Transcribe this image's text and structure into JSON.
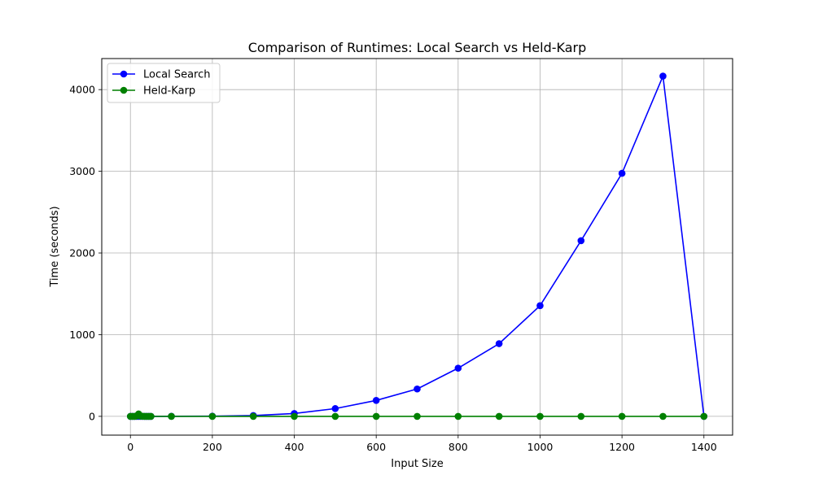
{
  "chart_data": {
    "type": "line",
    "title": "Comparison of Runtimes: Local Search vs Held-Karp",
    "xlabel": "Input Size",
    "ylabel": "Time (seconds)",
    "xlim": [
      -70,
      1470
    ],
    "ylim": [
      -230,
      4380
    ],
    "xticks": [
      0,
      200,
      400,
      600,
      800,
      1000,
      1200,
      1400
    ],
    "yticks": [
      0,
      1000,
      2000,
      3000,
      4000
    ],
    "grid": true,
    "legend_position": "top-left",
    "series": [
      {
        "name": "Local Search",
        "color": "#0000ff",
        "x": [
          0,
          5,
          10,
          15,
          20,
          25,
          30,
          35,
          40,
          45,
          50,
          100,
          200,
          300,
          400,
          500,
          600,
          700,
          800,
          900,
          1000,
          1100,
          1200,
          1300,
          1400
        ],
        "y": [
          0,
          0,
          0,
          0,
          0,
          0,
          0,
          0,
          0,
          0,
          0,
          1,
          2,
          10,
          35,
          95,
          195,
          335,
          590,
          890,
          1355,
          2150,
          2975,
          4165,
          0
        ]
      },
      {
        "name": "Held-Karp",
        "color": "#008000",
        "x": [
          0,
          5,
          10,
          15,
          20,
          25,
          30,
          35,
          40,
          45,
          50,
          100,
          200,
          300,
          400,
          500,
          600,
          700,
          800,
          900,
          1000,
          1100,
          1200,
          1300,
          1400
        ],
        "y": [
          0,
          0,
          0,
          5,
          30,
          3,
          1,
          0,
          0,
          0,
          0,
          0,
          0,
          0,
          0,
          0,
          0,
          0,
          0,
          0,
          0,
          0,
          0,
          0,
          0
        ]
      }
    ]
  }
}
